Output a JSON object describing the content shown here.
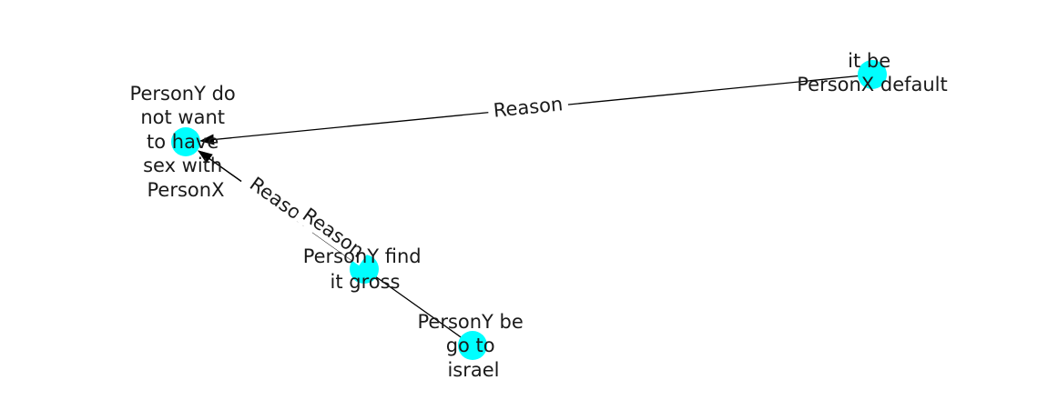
{
  "graph": {
    "node_color": "#00ffff",
    "edge_color": "#000000",
    "nodes": [
      {
        "id": "n1",
        "lines": [
          "PersonY do",
          "not want",
          "to have",
          "sex with",
          "PersonX"
        ]
      },
      {
        "id": "n2",
        "lines": [
          "it be",
          "PersonX default"
        ]
      },
      {
        "id": "n3",
        "lines": [
          "PersonY find",
          "it gross"
        ]
      },
      {
        "id": "n4",
        "lines": [
          "PersonY be",
          "go to",
          "israel"
        ]
      }
    ],
    "edges": [
      {
        "id": "e1",
        "from": "n2",
        "to": "n1",
        "label": "Reason",
        "arrow": true
      },
      {
        "id": "e2",
        "from": "n3",
        "to": "n1",
        "label": "Reason",
        "arrow": true
      },
      {
        "id": "e3",
        "from": "n4",
        "to": "n1",
        "label": "Reason",
        "arrow": true
      }
    ]
  }
}
